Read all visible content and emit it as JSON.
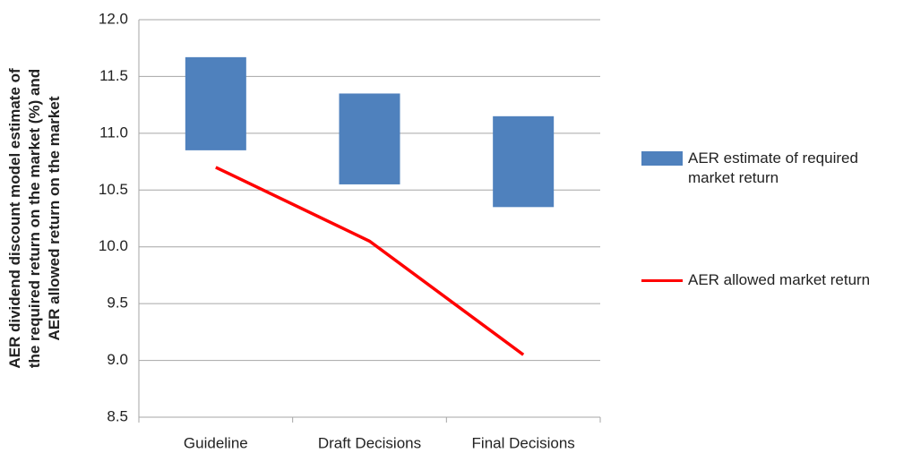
{
  "chart_data": {
    "type": "range-bar-line",
    "ylabel": [
      "AER dividend discount model estimate of",
      "the required return on the market (%) and",
      "AER allowed return on the market"
    ],
    "categories": [
      "Guideline",
      "Draft Decisions",
      "Final Decisions"
    ],
    "series": [
      {
        "name": "AER estimate of required market return",
        "color": "#4f81bd",
        "kind": "range",
        "low": [
          10.85,
          10.55,
          10.35
        ],
        "high": [
          11.67,
          11.35,
          11.15
        ]
      },
      {
        "name": "AER allowed market return",
        "color": "#ff0000",
        "kind": "line",
        "values": [
          10.7,
          10.05,
          9.05
        ]
      }
    ],
    "ylim": [
      8.5,
      12.0
    ],
    "yticks": [
      8.5,
      {
        "value": 9.0,
        "label": "9.0"
      },
      9.5,
      {
        "value": 10.0,
        "label": "10.0"
      },
      10.5,
      {
        "value": 11.0,
        "label": "11.0"
      },
      11.5,
      {
        "value": 12.0,
        "label": "12.0"
      }
    ],
    "grid": true
  }
}
